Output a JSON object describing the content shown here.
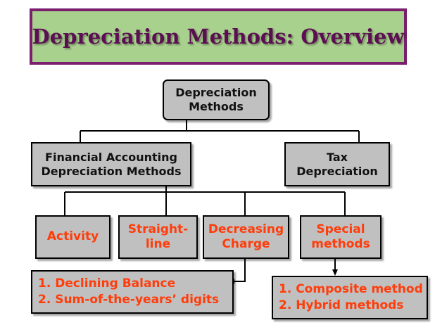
{
  "title": "Depreciation Methods: Overview",
  "root": {
    "line1": "Depreciation",
    "line2": "Methods"
  },
  "level1": {
    "financial": {
      "line1": "Financial Accounting",
      "line2": "Depreciation Methods"
    },
    "tax": {
      "line1": "Tax",
      "line2": "Depreciation"
    }
  },
  "level2": {
    "activity": {
      "line1": "Activity"
    },
    "straight_line": {
      "line1": "Straight-",
      "line2": "line"
    },
    "decreasing": {
      "line1": "Decreasing",
      "line2": "Charge"
    },
    "special": {
      "line1": "Special",
      "line2": "methods"
    }
  },
  "decreasing_list": [
    "1. Declining Balance",
    "2. Sum-of-the-years’ digits"
  ],
  "special_list": [
    "1. Composite method",
    "2. Hybrid methods"
  ],
  "colors": {
    "title_bg": "#a9d18e",
    "title_border": "#7a1f6e",
    "title_text": "#5b0f52",
    "box_bg": "#c0c0c0",
    "method_text": "#ff3c0a"
  }
}
